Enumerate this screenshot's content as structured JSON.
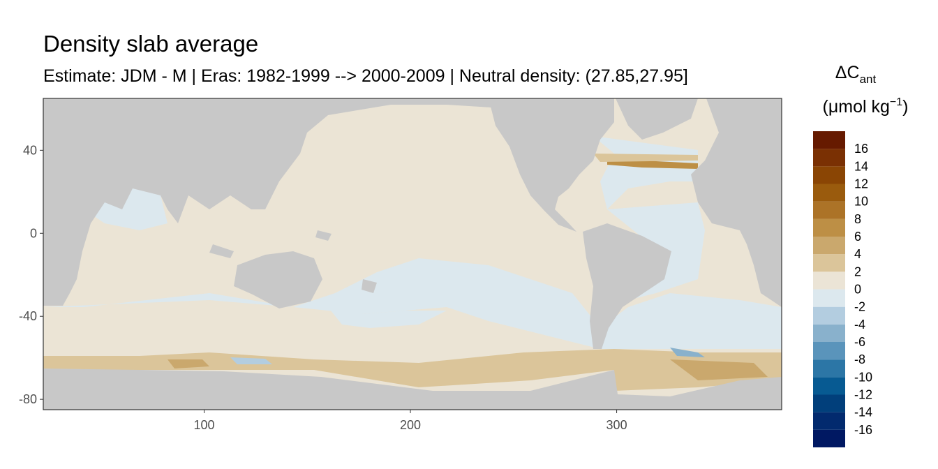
{
  "chart_data": {
    "type": "map",
    "title": "Density slab average",
    "subtitle": "Estimate: JDM - M | Eras: 1982-1999 --> 2000-2009 | Neutral density: (27.85,27.95]",
    "xlim": [
      22,
      380
    ],
    "ylim": [
      -85,
      65
    ],
    "xticks": [
      100,
      200,
      300
    ],
    "yticks": [
      40,
      0,
      -40,
      -80
    ],
    "land_color": "#c8c8c8",
    "ocean_color": "#ebe4d5",
    "legend": {
      "title": "ΔC",
      "title_sub": "ant",
      "unit": "(μmol kg",
      "unit_sup": "−1",
      "unit_end": ")",
      "bins": [
        -18,
        -16,
        -14,
        -12,
        -10,
        -8,
        -6,
        -4,
        -2,
        0,
        2,
        4,
        6,
        8,
        10,
        12,
        14,
        16,
        18
      ],
      "colors": [
        "#001862",
        "#022a6e",
        "#013f7b",
        "#075a92",
        "#2c76a6",
        "#5a94bb",
        "#89b1cc",
        "#b3cde0",
        "#dce8ee",
        "#ebe4d6",
        "#dbc59a",
        "#caa86d",
        "#bd8f45",
        "#ac7327",
        "#9a5b0d",
        "#8a4504",
        "#7a3003",
        "#661a00"
      ],
      "breaks": [
        16,
        14,
        12,
        10,
        8,
        6,
        4,
        2,
        0,
        -2,
        -4,
        -6,
        -8,
        -10,
        -12,
        -14,
        -16
      ]
    }
  }
}
